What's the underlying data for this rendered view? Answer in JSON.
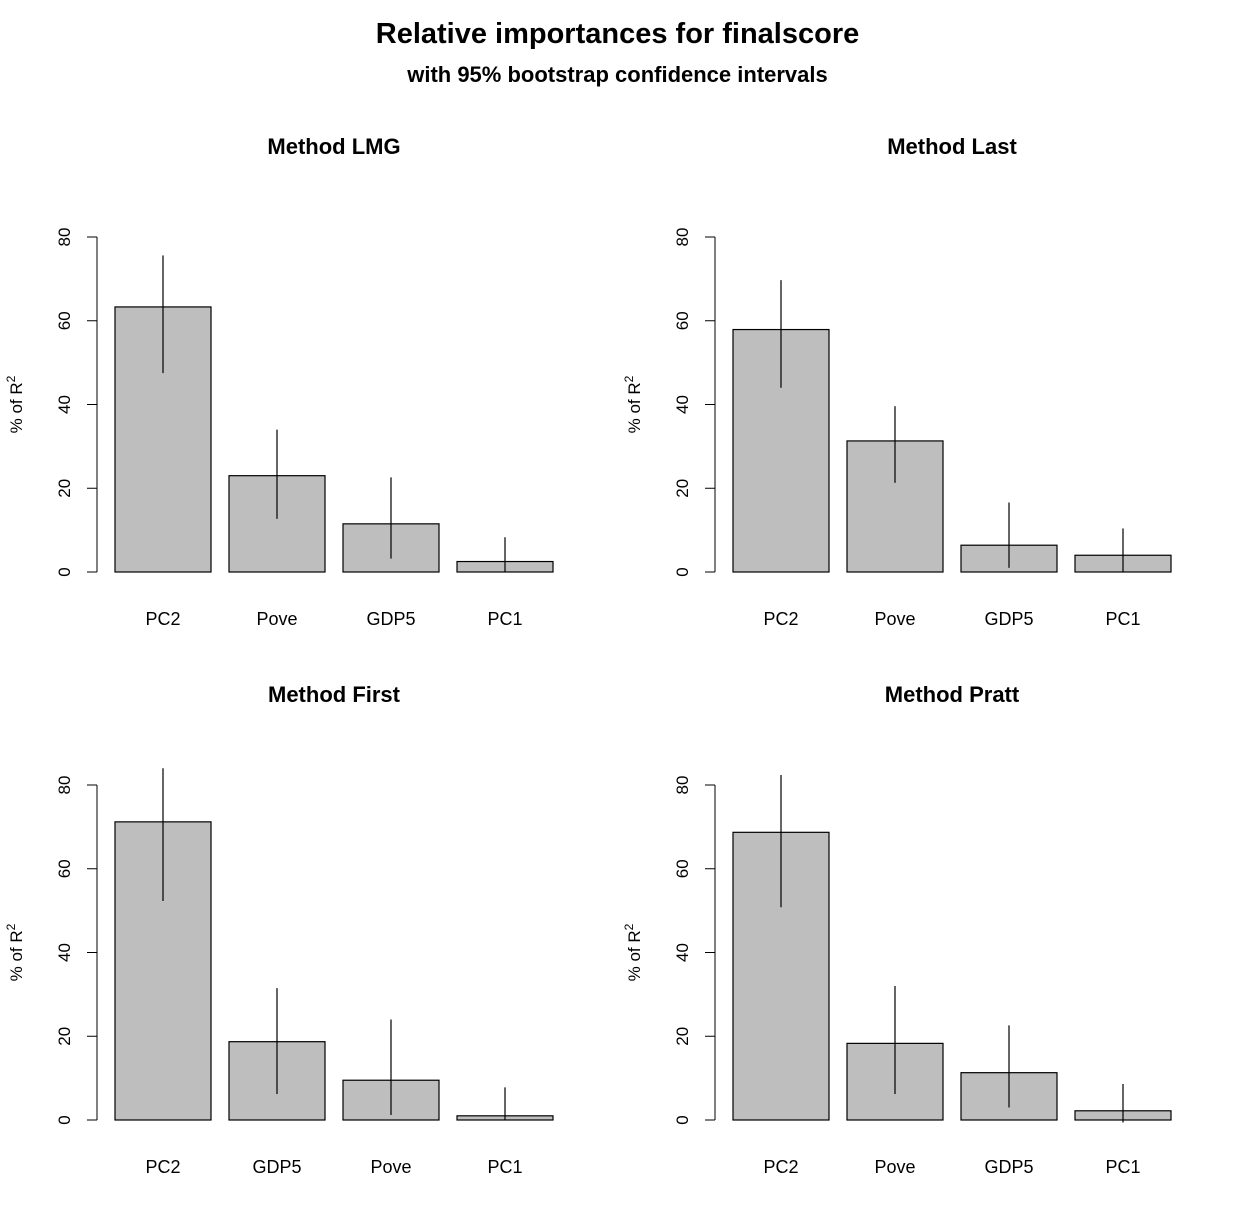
{
  "title": "Relative importances for finalscore",
  "subtitle": "with 95% bootstrap confidence intervals",
  "ylabel_text": "% of R",
  "ylabel_sup": "2",
  "chart_data": [
    {
      "type": "bar",
      "title": "Method LMG",
      "categories": [
        "PC2",
        "Pove",
        "GDP5",
        "PC1"
      ],
      "values": [
        63.3,
        23.0,
        11.5,
        2.5
      ],
      "ci_lower": [
        47.5,
        12.7,
        3.2,
        0.0
      ],
      "ci_upper": [
        75.6,
        34.0,
        22.6,
        8.3
      ],
      "ylabel": "% of R²",
      "ylim": [
        0,
        80
      ],
      "yticks": [
        0,
        20,
        40,
        60,
        80
      ],
      "bar_color": "#bebebe"
    },
    {
      "type": "bar",
      "title": "Method Last",
      "categories": [
        "PC2",
        "Pove",
        "GDP5",
        "PC1"
      ],
      "values": [
        57.9,
        31.3,
        6.4,
        4.0
      ],
      "ci_lower": [
        44.0,
        21.3,
        1.0,
        0.0
      ],
      "ci_upper": [
        69.7,
        39.6,
        16.6,
        10.4
      ],
      "ylabel": "% of R²",
      "ylim": [
        0,
        80
      ],
      "yticks": [
        0,
        20,
        40,
        60,
        80
      ],
      "bar_color": "#bebebe"
    },
    {
      "type": "bar",
      "title": "Method First",
      "categories": [
        "PC2",
        "GDP5",
        "Pove",
        "PC1"
      ],
      "values": [
        71.2,
        18.7,
        9.5,
        1.0
      ],
      "ci_lower": [
        52.3,
        6.2,
        1.2,
        0.0
      ],
      "ci_upper": [
        84.0,
        31.5,
        24.0,
        7.8
      ],
      "ylabel": "% of R²",
      "ylim": [
        0,
        80
      ],
      "yticks": [
        0,
        20,
        40,
        60,
        80
      ],
      "bar_color": "#bebebe"
    },
    {
      "type": "bar",
      "title": "Method Pratt",
      "categories": [
        "PC2",
        "Pove",
        "GDP5",
        "PC1"
      ],
      "values": [
        68.7,
        18.3,
        11.3,
        2.2
      ],
      "ci_lower": [
        50.8,
        6.2,
        3.0,
        -0.6
      ],
      "ci_upper": [
        82.4,
        32.0,
        22.6,
        8.6
      ],
      "ylabel": "% of R²",
      "ylim": [
        0,
        80
      ],
      "yticks": [
        0,
        20,
        40,
        60,
        80
      ],
      "bar_color": "#bebebe"
    }
  ]
}
